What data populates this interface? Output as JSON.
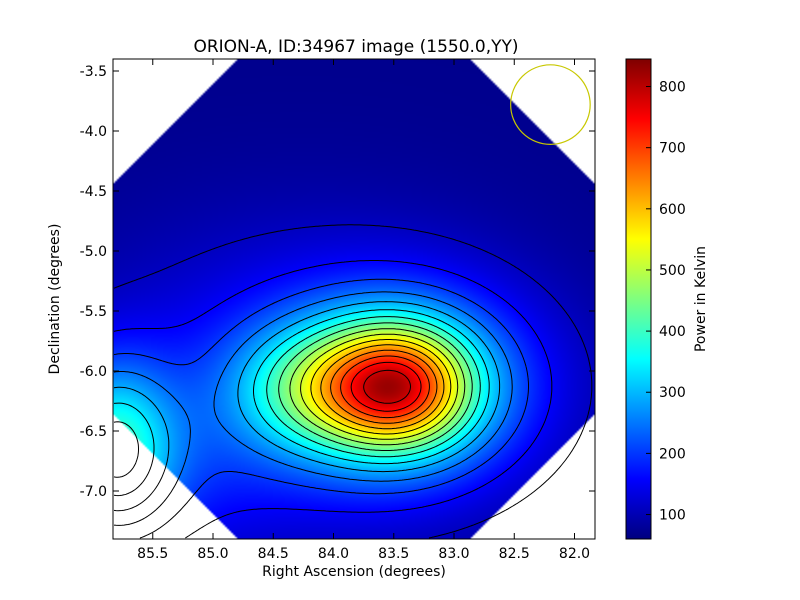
{
  "chart_data": {
    "type": "heatmap",
    "title": "ORION-A, ID:34967 image (1550.0,YY)",
    "xlabel": "Right Ascension (degrees)",
    "ylabel": "Declination (degrees)",
    "colorbar_label": "Power in Kelvin",
    "colormap": "jet",
    "xlim": [
      85.83,
      81.83
    ],
    "ylim": [
      -7.4,
      -3.4
    ],
    "x_ticks": [
      "85.5",
      "85.0",
      "84.5",
      "84.0",
      "83.5",
      "83.0",
      "82.5",
      "82.0"
    ],
    "x_tick_values": [
      85.5,
      85.0,
      84.5,
      84.0,
      83.5,
      83.0,
      82.5,
      82.0
    ],
    "y_ticks": [
      "-3.5",
      "-4.0",
      "-4.5",
      "-5.0",
      "-5.5",
      "-6.0",
      "-6.5",
      "-7.0"
    ],
    "y_tick_values": [
      -3.5,
      -4.0,
      -4.5,
      -5.0,
      -5.5,
      -6.0,
      -6.5,
      -7.0
    ],
    "colorbar_range": [
      60,
      845
    ],
    "colorbar_ticks": [
      "100",
      "200",
      "300",
      "400",
      "500",
      "600",
      "700",
      "800"
    ],
    "colorbar_tick_values": [
      100,
      200,
      300,
      400,
      500,
      600,
      700,
      800
    ],
    "peak": {
      "ra": 83.47,
      "dec": -6.13,
      "value": 845
    },
    "secondary_source": {
      "ra": 85.83,
      "dec": -6.65,
      "value": 330
    },
    "beam_circle": {
      "ra": 82.2,
      "dec": -3.78,
      "radius_deg": 0.33,
      "color": "#c8c800"
    },
    "grid": false
  }
}
